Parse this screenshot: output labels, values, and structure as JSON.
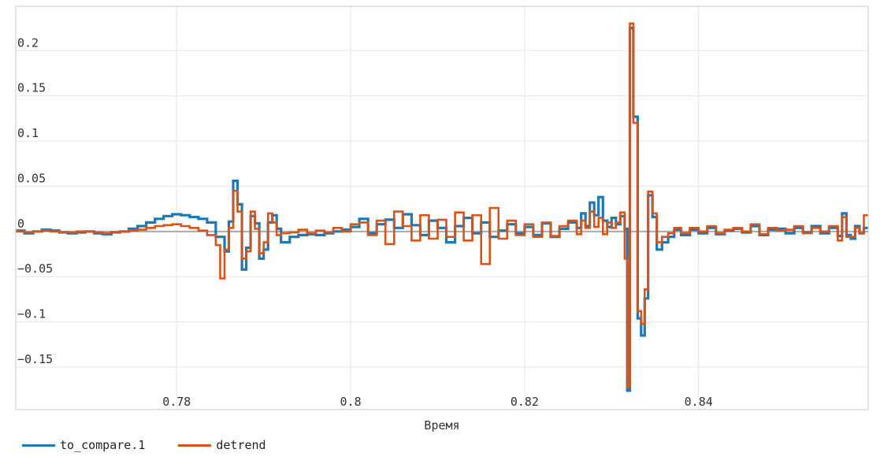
{
  "chart_data": {
    "type": "line",
    "step": true,
    "title": "",
    "xlabel": "Время",
    "ylabel": "",
    "xlim": [
      0.7615,
      0.8595
    ],
    "ylim": [
      -0.197,
      0.249
    ],
    "grid": true,
    "legend_position": "bottom-left",
    "x_ticks": [
      {
        "value": 0.78,
        "label": "0.78"
      },
      {
        "value": 0.8,
        "label": "0.8"
      },
      {
        "value": 0.82,
        "label": "0.82"
      },
      {
        "value": 0.84,
        "label": "0.84"
      }
    ],
    "y_ticks": [
      {
        "value": 0.2,
        "label": "0.2"
      },
      {
        "value": 0.15,
        "label": "0.15"
      },
      {
        "value": 0.1,
        "label": "0.1"
      },
      {
        "value": 0.05,
        "label": "0.05"
      },
      {
        "value": 0,
        "label": "0"
      },
      {
        "value": -0.05,
        "label": "−0.05"
      },
      {
        "value": -0.1,
        "label": "−0.1"
      },
      {
        "value": -0.15,
        "label": "−0.15"
      }
    ],
    "baseline_color": "#aaaaaa",
    "series": [
      {
        "name": "to_compare.1",
        "color": "#1f77b4",
        "points": [
          [
            0.7615,
            0.001
          ],
          [
            0.7625,
            -0.002
          ],
          [
            0.7635,
            0.0
          ],
          [
            0.7645,
            0.002
          ],
          [
            0.7655,
            0.001
          ],
          [
            0.7665,
            -0.001
          ],
          [
            0.7675,
            -0.002
          ],
          [
            0.7685,
            -0.001
          ],
          [
            0.7695,
            0.0
          ],
          [
            0.7705,
            -0.002
          ],
          [
            0.7715,
            -0.003
          ],
          [
            0.7725,
            -0.001
          ],
          [
            0.7735,
            0.0
          ],
          [
            0.7745,
            0.003
          ],
          [
            0.7755,
            0.006
          ],
          [
            0.7765,
            0.01
          ],
          [
            0.7775,
            0.014
          ],
          [
            0.7785,
            0.017
          ],
          [
            0.7795,
            0.019
          ],
          [
            0.7805,
            0.018
          ],
          [
            0.7815,
            0.016
          ],
          [
            0.7825,
            0.014
          ],
          [
            0.7835,
            0.01
          ],
          [
            0.7845,
            -0.006
          ],
          [
            0.7855,
            -0.022
          ],
          [
            0.786,
            0.011
          ],
          [
            0.7865,
            0.056
          ],
          [
            0.787,
            0.03
          ],
          [
            0.7875,
            -0.042
          ],
          [
            0.788,
            -0.018
          ],
          [
            0.7885,
            0.017
          ],
          [
            0.789,
            0.009
          ],
          [
            0.7895,
            -0.03
          ],
          [
            0.79,
            -0.02
          ],
          [
            0.7905,
            0.01
          ],
          [
            0.791,
            0.018
          ],
          [
            0.7915,
            0.003
          ],
          [
            0.792,
            -0.012
          ],
          [
            0.793,
            -0.006
          ],
          [
            0.794,
            -0.004
          ],
          [
            0.795,
            -0.003
          ],
          [
            0.796,
            -0.004
          ],
          [
            0.797,
            -0.002
          ],
          [
            0.798,
            0.0
          ],
          [
            0.799,
            0.002
          ],
          [
            0.8,
            0.005
          ],
          [
            0.801,
            0.014
          ],
          [
            0.802,
            -0.002
          ],
          [
            0.803,
            0.008
          ],
          [
            0.804,
            0.013
          ],
          [
            0.805,
            0.004
          ],
          [
            0.806,
            0.019
          ],
          [
            0.807,
            0.007
          ],
          [
            0.808,
            -0.004
          ],
          [
            0.809,
            0.012
          ],
          [
            0.81,
            0.004
          ],
          [
            0.811,
            -0.012
          ],
          [
            0.812,
            0.006
          ],
          [
            0.813,
            0.015
          ],
          [
            0.814,
            -0.002
          ],
          [
            0.815,
            0.01
          ],
          [
            0.816,
            -0.006
          ],
          [
            0.817,
            0.001
          ],
          [
            0.818,
            0.008
          ],
          [
            0.819,
            -0.002
          ],
          [
            0.82,
            0.005
          ],
          [
            0.821,
            -0.004
          ],
          [
            0.822,
            0.009
          ],
          [
            0.823,
            -0.006
          ],
          [
            0.824,
            0.003
          ],
          [
            0.825,
            0.01
          ],
          [
            0.826,
            0.004
          ],
          [
            0.8265,
            0.02
          ],
          [
            0.827,
            0.006
          ],
          [
            0.8275,
            0.032
          ],
          [
            0.828,
            0.018
          ],
          [
            0.8285,
            0.038
          ],
          [
            0.829,
            0.012
          ],
          [
            0.8295,
            0.005
          ],
          [
            0.83,
            0.015
          ],
          [
            0.8305,
            0.008
          ],
          [
            0.831,
            0.017
          ],
          [
            0.8315,
            0.003
          ],
          [
            0.8318,
            -0.176
          ],
          [
            0.8321,
            0.225
          ],
          [
            0.8325,
            0.127
          ],
          [
            0.833,
            -0.096
          ],
          [
            0.8334,
            -0.115
          ],
          [
            0.8338,
            -0.074
          ],
          [
            0.8342,
            0.04
          ],
          [
            0.8347,
            0.016
          ],
          [
            0.8352,
            -0.02
          ],
          [
            0.8358,
            -0.012
          ],
          [
            0.8365,
            -0.006
          ],
          [
            0.8372,
            0.002
          ],
          [
            0.838,
            -0.004
          ],
          [
            0.839,
            0.002
          ],
          [
            0.84,
            -0.002
          ],
          [
            0.841,
            0.004
          ],
          [
            0.842,
            -0.003
          ],
          [
            0.843,
            0.001
          ],
          [
            0.844,
            0.003
          ],
          [
            0.845,
            -0.001
          ],
          [
            0.846,
            0.006
          ],
          [
            0.847,
            -0.004
          ],
          [
            0.848,
            0.002
          ],
          [
            0.849,
            0.003
          ],
          [
            0.85,
            -0.002
          ],
          [
            0.851,
            0.004
          ],
          [
            0.852,
            -0.001
          ],
          [
            0.853,
            0.006
          ],
          [
            0.854,
            -0.002
          ],
          [
            0.855,
            0.004
          ],
          [
            0.856,
            -0.005
          ],
          [
            0.8565,
            0.02
          ],
          [
            0.857,
            -0.004
          ],
          [
            0.8575,
            -0.008
          ],
          [
            0.858,
            0.006
          ],
          [
            0.8585,
            -0.002
          ],
          [
            0.859,
            0.004
          ]
        ]
      },
      {
        "name": "detrend",
        "color": "#d95319",
        "points": [
          [
            0.7615,
            0.0
          ],
          [
            0.7625,
            -0.001
          ],
          [
            0.7635,
            0.0
          ],
          [
            0.7645,
            0.001
          ],
          [
            0.7655,
            0.0
          ],
          [
            0.7665,
            -0.001
          ],
          [
            0.7675,
            -0.001
          ],
          [
            0.7685,
            0.0
          ],
          [
            0.7695,
            0.0
          ],
          [
            0.7705,
            -0.001
          ],
          [
            0.7715,
            -0.002
          ],
          [
            0.7725,
            -0.001
          ],
          [
            0.7735,
            0.0
          ],
          [
            0.7745,
            0.001
          ],
          [
            0.7755,
            0.002
          ],
          [
            0.7765,
            0.004
          ],
          [
            0.7775,
            0.006
          ],
          [
            0.7785,
            0.007
          ],
          [
            0.7795,
            0.008
          ],
          [
            0.7805,
            0.006
          ],
          [
            0.7815,
            0.004
          ],
          [
            0.7825,
            0.001
          ],
          [
            0.7835,
            -0.004
          ],
          [
            0.7845,
            -0.015
          ],
          [
            0.785,
            -0.052
          ],
          [
            0.7855,
            -0.02
          ],
          [
            0.786,
            0.004
          ],
          [
            0.7865,
            0.045
          ],
          [
            0.787,
            0.022
          ],
          [
            0.7875,
            -0.03
          ],
          [
            0.788,
            -0.022
          ],
          [
            0.7885,
            0.022
          ],
          [
            0.789,
            0.003
          ],
          [
            0.7895,
            -0.024
          ],
          [
            0.79,
            -0.012
          ],
          [
            0.7905,
            0.02
          ],
          [
            0.791,
            0.01
          ],
          [
            0.7915,
            -0.004
          ],
          [
            0.792,
            -0.002
          ],
          [
            0.793,
            -0.001
          ],
          [
            0.794,
            0.002
          ],
          [
            0.795,
            -0.002
          ],
          [
            0.796,
            0.001
          ],
          [
            0.797,
            -0.001
          ],
          [
            0.798,
            0.004
          ],
          [
            0.799,
            0.0
          ],
          [
            0.8,
            0.008
          ],
          [
            0.801,
            0.01
          ],
          [
            0.802,
            -0.004
          ],
          [
            0.803,
            0.012
          ],
          [
            0.804,
            -0.014
          ],
          [
            0.805,
            0.022
          ],
          [
            0.806,
            0.006
          ],
          [
            0.807,
            -0.01
          ],
          [
            0.808,
            0.018
          ],
          [
            0.809,
            -0.008
          ],
          [
            0.81,
            0.013
          ],
          [
            0.811,
            -0.006
          ],
          [
            0.812,
            0.021
          ],
          [
            0.813,
            -0.01
          ],
          [
            0.814,
            0.018
          ],
          [
            0.815,
            -0.036
          ],
          [
            0.816,
            0.026
          ],
          [
            0.817,
            -0.008
          ],
          [
            0.818,
            0.012
          ],
          [
            0.819,
            -0.004
          ],
          [
            0.82,
            0.008
          ],
          [
            0.821,
            -0.006
          ],
          [
            0.822,
            0.01
          ],
          [
            0.823,
            -0.005
          ],
          [
            0.824,
            0.006
          ],
          [
            0.825,
            0.012
          ],
          [
            0.826,
            -0.003
          ],
          [
            0.8265,
            0.012
          ],
          [
            0.827,
            0.004
          ],
          [
            0.8275,
            0.022
          ],
          [
            0.828,
            0.005
          ],
          [
            0.8285,
            0.015
          ],
          [
            0.829,
            -0.003
          ],
          [
            0.8295,
            0.01
          ],
          [
            0.83,
            0.004
          ],
          [
            0.8305,
            0.01
          ],
          [
            0.831,
            0.021
          ],
          [
            0.8315,
            -0.03
          ],
          [
            0.8318,
            -0.172
          ],
          [
            0.8321,
            0.23
          ],
          [
            0.8325,
            0.12
          ],
          [
            0.833,
            -0.088
          ],
          [
            0.8334,
            -0.102
          ],
          [
            0.8338,
            -0.064
          ],
          [
            0.8342,
            0.044
          ],
          [
            0.8347,
            0.02
          ],
          [
            0.8352,
            -0.012
          ],
          [
            0.8358,
            -0.006
          ],
          [
            0.8365,
            -0.002
          ],
          [
            0.8372,
            0.004
          ],
          [
            0.838,
            -0.002
          ],
          [
            0.839,
            0.004
          ],
          [
            0.84,
            0.0
          ],
          [
            0.841,
            0.006
          ],
          [
            0.842,
            -0.002
          ],
          [
            0.843,
            0.002
          ],
          [
            0.844,
            0.004
          ],
          [
            0.845,
            0.0
          ],
          [
            0.846,
            0.008
          ],
          [
            0.847,
            -0.003
          ],
          [
            0.848,
            0.004
          ],
          [
            0.849,
            0.001
          ],
          [
            0.85,
            0.002
          ],
          [
            0.851,
            0.006
          ],
          [
            0.852,
            -0.002
          ],
          [
            0.853,
            0.004
          ],
          [
            0.854,
            0.0
          ],
          [
            0.855,
            0.006
          ],
          [
            0.856,
            -0.01
          ],
          [
            0.8565,
            0.016
          ],
          [
            0.857,
            -0.006
          ],
          [
            0.8575,
            -0.006
          ],
          [
            0.858,
            0.004
          ],
          [
            0.8585,
            -0.002
          ],
          [
            0.859,
            0.018
          ]
        ]
      }
    ]
  }
}
